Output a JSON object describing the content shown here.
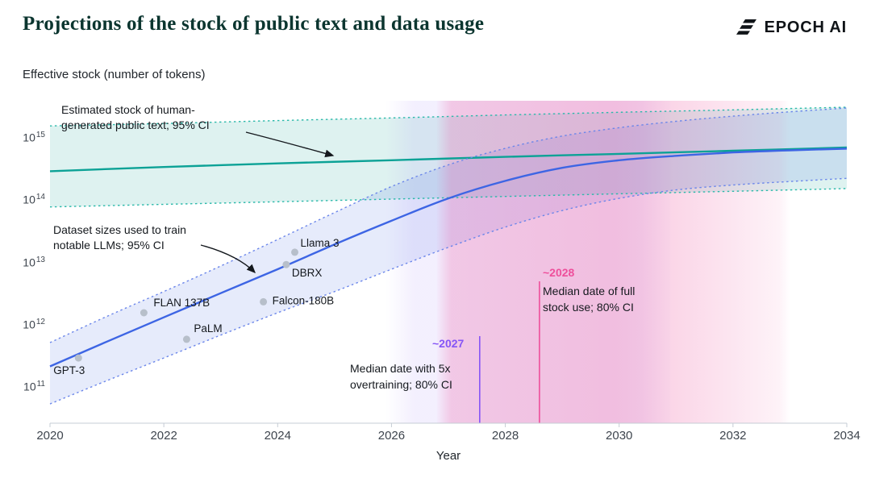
{
  "header": {
    "title": "Projections of the stock of public text and data usage",
    "brand": "EPOCH AI"
  },
  "chart_data": {
    "type": "line",
    "title": "Effective stock (number of tokens)",
    "xlabel": "Year",
    "xlim": [
      2020,
      2034
    ],
    "ylog_lim": [
      10.45,
      15.6
    ],
    "x_ticks": [
      2020,
      2022,
      2024,
      2026,
      2028,
      2030,
      2032,
      2034
    ],
    "y_ticks": [
      11,
      12,
      13,
      14,
      15
    ],
    "grid": false,
    "legend": "annotated inline",
    "series": [
      {
        "name": "human-text-upper-ci",
        "color": "#2cb9aa",
        "style": "dashed",
        "points": [
          [
            2020,
            1600000000000000.0
          ],
          [
            2022,
            1750000000000000.0
          ],
          [
            2024,
            1950000000000000.0
          ],
          [
            2026,
            2150000000000000.0
          ],
          [
            2028,
            2400000000000000.0
          ],
          [
            2030,
            2650000000000000.0
          ],
          [
            2032,
            2900000000000000.0
          ],
          [
            2034,
            3200000000000000.0
          ]
        ]
      },
      {
        "name": "human-text-median",
        "color": "#0ca296",
        "style": "solid",
        "points": [
          [
            2020,
            300000000000000.0
          ],
          [
            2022,
            350000000000000.0
          ],
          [
            2024,
            400000000000000.0
          ],
          [
            2026,
            450000000000000.0
          ],
          [
            2028,
            510000000000000.0
          ],
          [
            2030,
            570000000000000.0
          ],
          [
            2032,
            640000000000000.0
          ],
          [
            2034,
            720000000000000.0
          ]
        ]
      },
      {
        "name": "human-text-lower-ci",
        "color": "#2cb9aa",
        "style": "dashed",
        "points": [
          [
            2020,
            80000000000000.0
          ],
          [
            2022,
            88000000000000.0
          ],
          [
            2024,
            97000000000000.0
          ],
          [
            2026,
            107000000000000.0
          ],
          [
            2028,
            118000000000000.0
          ],
          [
            2030,
            130000000000000.0
          ],
          [
            2032,
            143000000000000.0
          ],
          [
            2034,
            158000000000000.0
          ]
        ]
      },
      {
        "name": "dataset-upper-ci",
        "color": "#6b86ea",
        "style": "dashed",
        "points": [
          [
            2020,
            530000000000.0
          ],
          [
            2021,
            1400000000000.0
          ],
          [
            2022,
            3500000000000.0
          ],
          [
            2023,
            9000000000000.0
          ],
          [
            2024,
            24000000000000.0
          ],
          [
            2025,
            65000000000000.0
          ],
          [
            2026,
            170000000000000.0
          ],
          [
            2027,
            380000000000000.0
          ],
          [
            2028,
            700000000000000.0
          ],
          [
            2029,
            1100000000000000.0
          ],
          [
            2030,
            1500000000000000.0
          ],
          [
            2031,
            1900000000000000.0
          ],
          [
            2032,
            2300000000000000.0
          ],
          [
            2033,
            2700000000000000.0
          ],
          [
            2034,
            3100000000000000.0
          ]
        ]
      },
      {
        "name": "dataset-median",
        "color": "#3d65e4",
        "style": "solid",
        "points": [
          [
            2020,
            220000000000.0
          ],
          [
            2021,
            550000000000.0
          ],
          [
            2022,
            1350000000000.0
          ],
          [
            2023,
            3300000000000.0
          ],
          [
            2024,
            8000000000000.0
          ],
          [
            2025,
            20000000000000.0
          ],
          [
            2026,
            48000000000000.0
          ],
          [
            2027,
            110000000000000.0
          ],
          [
            2028,
            210000000000000.0
          ],
          [
            2029,
            340000000000000.0
          ],
          [
            2030,
            450000000000000.0
          ],
          [
            2031,
            530000000000000.0
          ],
          [
            2032,
            600000000000000.0
          ],
          [
            2033,
            650000000000000.0
          ],
          [
            2034,
            690000000000000.0
          ]
        ]
      },
      {
        "name": "dataset-lower-ci",
        "color": "#6b86ea",
        "style": "dashed",
        "points": [
          [
            2020,
            55000000000.0
          ],
          [
            2021,
            130000000000.0
          ],
          [
            2022,
            300000000000.0
          ],
          [
            2023,
            700000000000.0
          ],
          [
            2024,
            1600000000000.0
          ],
          [
            2025,
            3500000000000.0
          ],
          [
            2026,
            8000000000000.0
          ],
          [
            2027,
            18000000000000.0
          ],
          [
            2028,
            38000000000000.0
          ],
          [
            2029,
            70000000000000.0
          ],
          [
            2030,
            110000000000000.0
          ],
          [
            2031,
            150000000000000.0
          ],
          [
            2032,
            180000000000000.0
          ],
          [
            2033,
            205000000000000.0
          ],
          [
            2034,
            230000000000000.0
          ]
        ]
      }
    ],
    "bands": [
      {
        "upper": "human-text-upper-ci",
        "lower": "human-text-lower-ci",
        "fill": "rgba(18,166,152,0.14)"
      },
      {
        "upper": "dataset-upper-ci",
        "lower": "dataset-lower-ci",
        "fill": "rgba(77,110,227,0.14)"
      }
    ],
    "scatter": {
      "color": "#b7bfca",
      "points": [
        {
          "label": "GPT-3",
          "year": 2020.5,
          "tokens": 300000000000.0,
          "dx": -31,
          "dy": 20
        },
        {
          "label": "FLAN 137B",
          "year": 2021.65,
          "tokens": 1600000000000.0,
          "dx": 12,
          "dy": -8
        },
        {
          "label": "PaLM",
          "year": 2022.4,
          "tokens": 600000000000.0,
          "dx": 9,
          "dy": -9
        },
        {
          "label": "Falcon-180B",
          "year": 2023.75,
          "tokens": 2400000000000.0,
          "dx": 11,
          "dy": 3
        },
        {
          "label": "DBRX",
          "year": 2024.15,
          "tokens": 9500000000000.0,
          "dx": 7,
          "dy": 15
        },
        {
          "label": "Llama 3",
          "year": 2024.3,
          "tokens": 15000000000000.0,
          "dx": 7,
          "dy": -7
        }
      ]
    },
    "events": [
      {
        "label": "~2027",
        "year": 2027.55,
        "color": "#8655f6",
        "band": [
          2025.9,
          2030.9
        ],
        "band_rgb": "148,113,248",
        "gradient": [
          [
            0,
            0
          ],
          [
            0.1,
            0.11
          ],
          [
            0.9,
            0.11
          ],
          [
            1,
            0.02
          ]
        ],
        "caption": "Median date with 5x overtraining; 80% CI"
      },
      {
        "label": "~2028",
        "year": 2028.6,
        "color": "#ee4f9b",
        "band": [
          2026.8,
          2033.0
        ],
        "band_rgb": "236,74,152",
        "gradient": [
          [
            0,
            0.02
          ],
          [
            0.04,
            0.24
          ],
          [
            0.5,
            0.3
          ],
          [
            0.68,
            0.22
          ],
          [
            0.97,
            0.07
          ],
          [
            1,
            0
          ]
        ],
        "caption": "Median date of full stock use; 80% CI"
      }
    ],
    "annotations": [
      {
        "text": "Estimated stock of human-generated public text; 95% CI"
      },
      {
        "text": "Dataset sizes used to train notable LLMs; 95% CI"
      }
    ]
  }
}
